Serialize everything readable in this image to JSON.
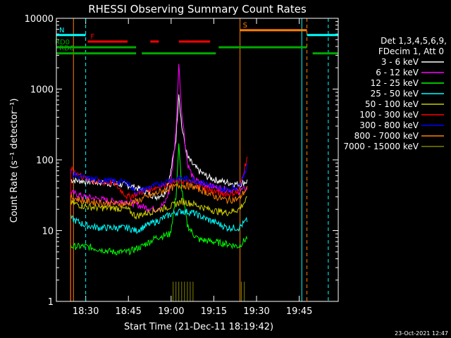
{
  "chart_data": {
    "type": "line",
    "title": "RHESSI Observing Summary Count Rates",
    "xlabel": "Start Time (21-Dec-11 18:19:42)",
    "ylabel": "Count Rate (s⁻¹ detector⁻¹)",
    "x_unit": "minutes since 18:19:42",
    "xlim": [
      0,
      99
    ],
    "ylim": [
      1,
      10000
    ],
    "yscale": "log",
    "x_ticks": [
      {
        "label": "18:30",
        "value": 10.3
      },
      {
        "label": "18:45",
        "value": 25.3
      },
      {
        "label": "19:00",
        "value": 40.3
      },
      {
        "label": "19:15",
        "value": 55.3
      },
      {
        "label": "19:30",
        "value": 70.3
      },
      {
        "label": "19:45",
        "value": 85.3
      }
    ],
    "y_ticks": [
      {
        "label": "1",
        "value": 1
      },
      {
        "label": "10",
        "value": 10
      },
      {
        "label": "100",
        "value": 100
      },
      {
        "label": "1000",
        "value": 1000
      },
      {
        "label": "10000",
        "value": 10000
      }
    ],
    "legend_header": [
      "Det 1,3,4,5,6,9,",
      "FDecim 1, Att 0"
    ],
    "series": [
      {
        "name": "3 - 6 keV",
        "color": "#ffffff",
        "points": [
          [
            5,
            52
          ],
          [
            10,
            50
          ],
          [
            15,
            48
          ],
          [
            20,
            46
          ],
          [
            25,
            44
          ],
          [
            30,
            38
          ],
          [
            35,
            30
          ],
          [
            38,
            34
          ],
          [
            40,
            60
          ],
          [
            42,
            200
          ],
          [
            43,
            900
          ],
          [
            44,
            300
          ],
          [
            46,
            110
          ],
          [
            48,
            85
          ],
          [
            50,
            70
          ],
          [
            53,
            58
          ],
          [
            56,
            52
          ],
          [
            60,
            48
          ],
          [
            64,
            45
          ],
          [
            67,
            50
          ]
        ]
      },
      {
        "name": "6 - 12 keV",
        "color": "#ff00ff",
        "points": [
          [
            5,
            35
          ],
          [
            10,
            30
          ],
          [
            15,
            28
          ],
          [
            20,
            26
          ],
          [
            25,
            26
          ],
          [
            30,
            22
          ],
          [
            35,
            20
          ],
          [
            38,
            24
          ],
          [
            40,
            40
          ],
          [
            42,
            250
          ],
          [
            43,
            2300
          ],
          [
            44,
            500
          ],
          [
            46,
            90
          ],
          [
            48,
            55
          ],
          [
            50,
            48
          ],
          [
            55,
            42
          ],
          [
            60,
            38
          ],
          [
            64,
            36
          ],
          [
            67,
            40
          ]
        ]
      },
      {
        "name": "12 - 25 keV",
        "color": "#00ff00",
        "points": [
          [
            5,
            6
          ],
          [
            10,
            6
          ],
          [
            15,
            5.5
          ],
          [
            20,
            5
          ],
          [
            25,
            5
          ],
          [
            30,
            6
          ],
          [
            35,
            8
          ],
          [
            40,
            9
          ],
          [
            42,
            30
          ],
          [
            43,
            160
          ],
          [
            44,
            40
          ],
          [
            46,
            12
          ],
          [
            48,
            9
          ],
          [
            50,
            7.5
          ],
          [
            55,
            7
          ],
          [
            60,
            6.5
          ],
          [
            64,
            6
          ],
          [
            67,
            8
          ]
        ]
      },
      {
        "name": "25 - 50 keV",
        "color": "#00ffff",
        "points": [
          [
            5,
            15
          ],
          [
            10,
            12
          ],
          [
            15,
            11
          ],
          [
            20,
            11
          ],
          [
            25,
            11
          ],
          [
            28,
            10
          ],
          [
            32,
            12
          ],
          [
            36,
            14
          ],
          [
            40,
            17
          ],
          [
            44,
            19
          ],
          [
            48,
            18
          ],
          [
            52,
            15
          ],
          [
            56,
            13
          ],
          [
            60,
            11
          ],
          [
            64,
            11
          ],
          [
            67,
            14
          ]
        ]
      },
      {
        "name": "50 - 100 keV",
        "color": "#cccc00",
        "points": [
          [
            5,
            25
          ],
          [
            10,
            22
          ],
          [
            15,
            21
          ],
          [
            20,
            21
          ],
          [
            25,
            20
          ],
          [
            28,
            16
          ],
          [
            32,
            18
          ],
          [
            36,
            20
          ],
          [
            40,
            22
          ],
          [
            44,
            26
          ],
          [
            48,
            24
          ],
          [
            52,
            21
          ],
          [
            56,
            19
          ],
          [
            60,
            18
          ],
          [
            64,
            20
          ],
          [
            67,
            28
          ]
        ]
      },
      {
        "name": "100 - 300 keV",
        "color": "#ff0000",
        "points": [
          [
            5,
            75
          ],
          [
            10,
            55
          ],
          [
            15,
            48
          ],
          [
            20,
            48
          ],
          [
            25,
            30
          ],
          [
            28,
            33
          ],
          [
            32,
            38
          ],
          [
            36,
            42
          ],
          [
            40,
            48
          ],
          [
            44,
            50
          ],
          [
            48,
            47
          ],
          [
            52,
            40
          ],
          [
            56,
            35
          ],
          [
            60,
            33
          ],
          [
            64,
            35
          ],
          [
            67,
            110
          ]
        ]
      },
      {
        "name": "300 - 800 keV",
        "color": "#0000ff",
        "points": [
          [
            5,
            65
          ],
          [
            10,
            55
          ],
          [
            15,
            52
          ],
          [
            20,
            50
          ],
          [
            25,
            48
          ],
          [
            28,
            35
          ],
          [
            32,
            40
          ],
          [
            36,
            45
          ],
          [
            40,
            52
          ],
          [
            44,
            55
          ],
          [
            48,
            52
          ],
          [
            52,
            47
          ],
          [
            56,
            40
          ],
          [
            60,
            38
          ],
          [
            64,
            42
          ],
          [
            67,
            80
          ]
        ]
      },
      {
        "name": "800 - 7000 keV",
        "color": "#ff8000",
        "points": [
          [
            5,
            30
          ],
          [
            10,
            26
          ],
          [
            15,
            25
          ],
          [
            20,
            24
          ],
          [
            25,
            24
          ],
          [
            28,
            26
          ],
          [
            32,
            30
          ],
          [
            36,
            35
          ],
          [
            40,
            40
          ],
          [
            44,
            44
          ],
          [
            48,
            42
          ],
          [
            52,
            36
          ],
          [
            56,
            30
          ],
          [
            60,
            27
          ],
          [
            64,
            28
          ],
          [
            67,
            40
          ]
        ]
      },
      {
        "name": "7000 - 15000 keV",
        "color": "#808000",
        "points": [
          [
            41,
            1.9
          ],
          [
            42,
            1.9
          ],
          [
            43,
            1.9
          ],
          [
            44,
            1.9
          ],
          [
            45,
            1.9
          ],
          [
            46,
            1.9
          ],
          [
            47,
            1.9
          ],
          [
            48,
            1.9
          ],
          [
            65,
            1.9
          ],
          [
            66,
            1.9
          ]
        ]
      }
    ],
    "flag_bars": [
      {
        "label": "N",
        "color": "#00ffff",
        "y": 5800,
        "segments": [
          [
            0,
            10.3
          ],
          [
            88,
            99
          ]
        ]
      },
      {
        "label": "F",
        "color": "#ff0000",
        "y": 4700,
        "segments": [
          [
            11,
            25
          ],
          [
            33,
            36
          ],
          [
            43,
            54
          ]
        ]
      },
      {
        "label": "S",
        "color": "#ff8000",
        "y": 6800,
        "segments": [
          [
            64.5,
            88
          ]
        ]
      },
      {
        "label": "RD0",
        "color": "#00aa00",
        "y": 3900,
        "segments": [
          [
            0,
            28
          ],
          [
            57,
            88
          ]
        ]
      },
      {
        "label": "RD6",
        "color": "#00aa00",
        "y": 3200,
        "segments": [
          [
            0,
            28
          ],
          [
            30,
            56
          ],
          [
            90,
            99
          ]
        ]
      }
    ],
    "vertical_lines": [
      {
        "color": "#00ffff",
        "x": 0,
        "style": "solid"
      },
      {
        "color": "#00ffff",
        "x": 10.3,
        "style": "dashed"
      },
      {
        "color": "#ff8000",
        "x": 6.0,
        "style": "solid"
      },
      {
        "color": "#ff8000",
        "x": 64.5,
        "style": "solid"
      },
      {
        "color": "#00ffff",
        "x": 86.2,
        "style": "solid"
      },
      {
        "color": "#ff8000",
        "x": 88.0,
        "style": "dashed"
      },
      {
        "color": "#00ffff",
        "x": 95.5,
        "style": "dashed"
      }
    ]
  },
  "footer_date": "23-Oct-2021 12:47"
}
